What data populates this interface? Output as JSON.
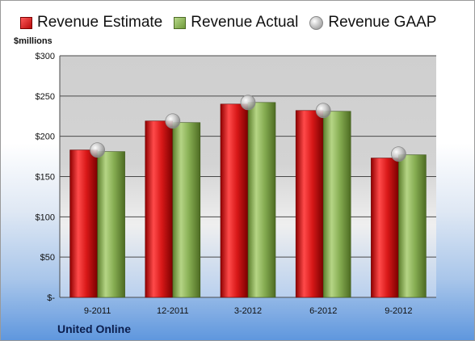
{
  "legend": {
    "estimate": "Revenue Estimate",
    "actual": "Revenue Actual",
    "gaap": "Revenue GAAP"
  },
  "unit_label": "$millions",
  "company": "United Online",
  "colors": {
    "estimate": "#d21f1f",
    "actual": "#8db35a",
    "gaap": "#c0c0c0"
  },
  "chart_data": {
    "type": "bar",
    "categories": [
      "9-2011",
      "12-2011",
      "3-2012",
      "6-2012",
      "9-2012"
    ],
    "series": [
      {
        "name": "Revenue Estimate",
        "values": [
          183,
          219,
          240,
          232,
          173
        ]
      },
      {
        "name": "Revenue Actual",
        "values": [
          181,
          217,
          242,
          231,
          177
        ]
      },
      {
        "name": "Revenue GAAP",
        "values": [
          183,
          219,
          242,
          232,
          178
        ]
      }
    ],
    "ylabel": "$millions",
    "ylim": [
      0,
      300
    ],
    "yticks": [
      0,
      50,
      100,
      150,
      200,
      250,
      300
    ],
    "ytick_labels": [
      "$-",
      "$50",
      "$100",
      "$150",
      "$200",
      "$250",
      "$300"
    ],
    "grid": true,
    "legend_position": "top"
  }
}
